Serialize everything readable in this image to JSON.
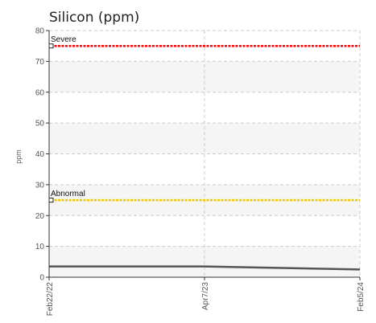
{
  "chart_data": {
    "type": "line",
    "title": "Silicon (ppm)",
    "ylabel": "ppm",
    "xlabel": "",
    "ylim": [
      0,
      80
    ],
    "yticks": [
      0,
      10,
      20,
      30,
      40,
      50,
      60,
      70,
      80
    ],
    "x_tick_labels": [
      "Feb22/22",
      "Apr7/23",
      "Feb5/24"
    ],
    "grid": true,
    "series": [
      {
        "x": [
          "Feb22/22",
          "Apr7/23",
          "Feb5/24"
        ],
        "values": [
          3.5,
          3.5,
          2.5
        ],
        "color": "#555555"
      }
    ],
    "thresholds": [
      {
        "label": "Severe",
        "value": 75,
        "color": "#ff0000"
      },
      {
        "label": "Abnormal",
        "value": 25,
        "color": "#f0c800"
      }
    ]
  }
}
